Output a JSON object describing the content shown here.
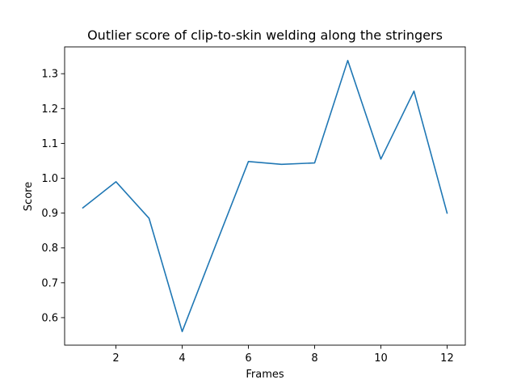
{
  "chart_data": {
    "type": "line",
    "title": "Outlier score of clip-to-skin welding along the stringers",
    "xlabel": "Frames",
    "ylabel": "Score",
    "x": [
      1,
      2,
      3,
      4,
      5,
      6,
      7,
      8,
      9,
      10,
      11,
      12
    ],
    "series": [
      {
        "values": [
          0.915,
          0.99,
          0.885,
          0.56,
          0.805,
          1.048,
          1.04,
          1.044,
          1.338,
          1.055,
          1.25,
          0.9
        ],
        "color": "#1f77b4"
      }
    ],
    "xlim": [
      0.45,
      12.55
    ],
    "ylim": [
      0.521,
      1.377
    ],
    "xticks": [
      2,
      4,
      6,
      8,
      10,
      12
    ],
    "xtick_labels": [
      "2",
      "4",
      "6",
      "8",
      "10",
      "12"
    ],
    "yticks": [
      0.6,
      0.7,
      0.8,
      0.9,
      1.0,
      1.1,
      1.2,
      1.3
    ],
    "ytick_labels": [
      "0.6",
      "0.7",
      "0.8",
      "0.9",
      "1.0",
      "1.1",
      "1.2",
      "1.3"
    ],
    "grid": false,
    "legend": false
  }
}
